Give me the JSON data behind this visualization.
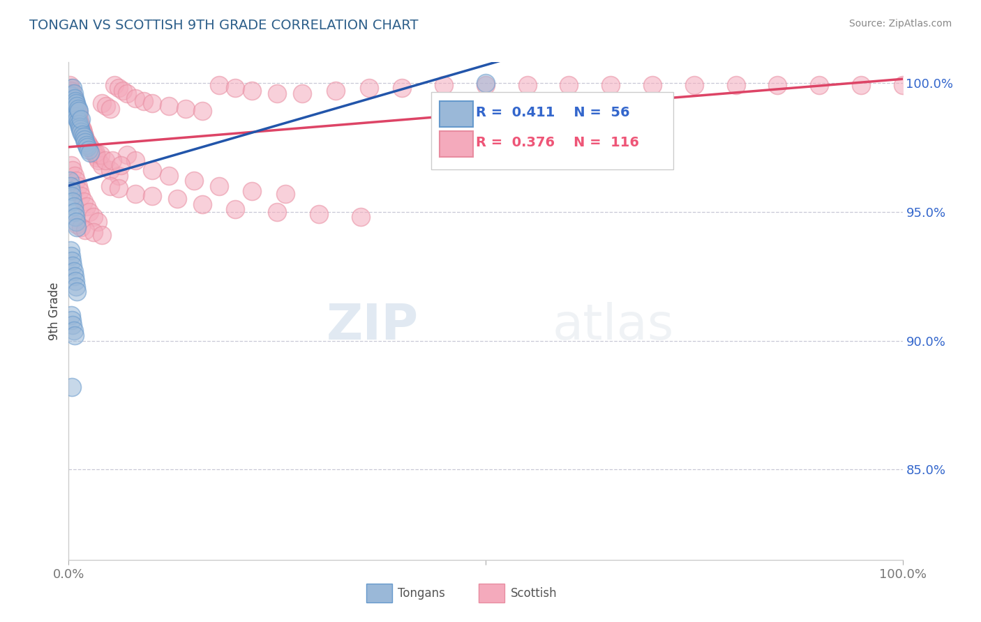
{
  "title": "TONGAN VS SCOTTISH 9TH GRADE CORRELATION CHART",
  "source": "Source: ZipAtlas.com",
  "ylabel": "9th Grade",
  "ylabel_right_ticks": [
    "100.0%",
    "95.0%",
    "90.0%",
    "85.0%"
  ],
  "ylabel_right_vals": [
    1.0,
    0.95,
    0.9,
    0.85
  ],
  "ylim": [
    0.815,
    1.008
  ],
  "xlim": [
    0.0,
    1.0
  ],
  "tongan_R": 0.411,
  "tongan_N": 56,
  "scottish_R": 0.376,
  "scottish_N": 116,
  "tongan_color": "#9AB8D8",
  "scottish_color": "#F4AABC",
  "tongan_edge_color": "#6699CC",
  "scottish_edge_color": "#E88CA0",
  "tongan_line_color": "#2255AA",
  "scottish_line_color": "#DD4466",
  "background_color": "#FFFFFF",
  "grid_color": "#BBBBCC",
  "title_color": "#2D5F8A",
  "source_color": "#888888",
  "legend_text_color": "#3366CC",
  "legend_scottish_color": "#EE5577",
  "watermark_zip": "ZIP",
  "watermark_atlas": "atlas",
  "tongan_x": [
    0.003,
    0.004,
    0.005,
    0.005,
    0.006,
    0.006,
    0.007,
    0.007,
    0.008,
    0.008,
    0.009,
    0.009,
    0.01,
    0.01,
    0.011,
    0.011,
    0.012,
    0.012,
    0.013,
    0.014,
    0.015,
    0.015,
    0.016,
    0.018,
    0.019,
    0.02,
    0.021,
    0.022,
    0.024,
    0.026,
    0.001,
    0.002,
    0.003,
    0.004,
    0.005,
    0.006,
    0.007,
    0.008,
    0.009,
    0.01,
    0.002,
    0.003,
    0.004,
    0.005,
    0.006,
    0.007,
    0.008,
    0.009,
    0.01,
    0.003,
    0.004,
    0.005,
    0.006,
    0.007,
    0.004,
    0.5
  ],
  "tongan_y": [
    0.995,
    0.993,
    0.991,
    0.998,
    0.99,
    0.996,
    0.989,
    0.994,
    0.988,
    0.993,
    0.987,
    0.992,
    0.986,
    0.991,
    0.985,
    0.99,
    0.984,
    0.989,
    0.983,
    0.982,
    0.981,
    0.986,
    0.98,
    0.979,
    0.978,
    0.977,
    0.976,
    0.975,
    0.974,
    0.973,
    0.962,
    0.96,
    0.958,
    0.956,
    0.954,
    0.952,
    0.95,
    0.948,
    0.946,
    0.944,
    0.935,
    0.933,
    0.931,
    0.929,
    0.927,
    0.925,
    0.923,
    0.921,
    0.919,
    0.91,
    0.908,
    0.906,
    0.904,
    0.902,
    0.882,
    1.0
  ],
  "scottish_x": [
    0.001,
    0.001,
    0.002,
    0.002,
    0.003,
    0.003,
    0.004,
    0.004,
    0.005,
    0.005,
    0.006,
    0.006,
    0.007,
    0.007,
    0.008,
    0.008,
    0.009,
    0.009,
    0.01,
    0.01,
    0.011,
    0.011,
    0.012,
    0.012,
    0.013,
    0.014,
    0.015,
    0.016,
    0.017,
    0.018,
    0.019,
    0.02,
    0.022,
    0.024,
    0.026,
    0.028,
    0.03,
    0.032,
    0.034,
    0.036,
    0.04,
    0.045,
    0.05,
    0.055,
    0.06,
    0.065,
    0.07,
    0.08,
    0.09,
    0.1,
    0.12,
    0.14,
    0.16,
    0.18,
    0.2,
    0.22,
    0.25,
    0.28,
    0.32,
    0.36,
    0.4,
    0.45,
    0.5,
    0.55,
    0.6,
    0.65,
    0.7,
    0.75,
    0.8,
    0.85,
    0.9,
    0.95,
    1.0,
    0.003,
    0.005,
    0.007,
    0.009,
    0.011,
    0.013,
    0.015,
    0.018,
    0.021,
    0.025,
    0.03,
    0.035,
    0.04,
    0.05,
    0.06,
    0.07,
    0.08,
    0.1,
    0.12,
    0.15,
    0.18,
    0.22,
    0.26,
    0.01,
    0.015,
    0.02,
    0.03,
    0.04,
    0.05,
    0.06,
    0.08,
    0.1,
    0.13,
    0.16,
    0.2,
    0.25,
    0.3,
    0.35,
    0.032,
    0.038,
    0.044,
    0.052,
    0.062
  ],
  "scottish_y": [
    0.999,
    0.997,
    0.998,
    0.996,
    0.997,
    0.995,
    0.996,
    0.994,
    0.995,
    0.993,
    0.994,
    0.992,
    0.993,
    0.991,
    0.992,
    0.99,
    0.991,
    0.989,
    0.99,
    0.988,
    0.989,
    0.987,
    0.988,
    0.986,
    0.985,
    0.984,
    0.983,
    0.982,
    0.981,
    0.98,
    0.979,
    0.978,
    0.977,
    0.976,
    0.975,
    0.974,
    0.973,
    0.972,
    0.971,
    0.97,
    0.992,
    0.991,
    0.99,
    0.999,
    0.998,
    0.997,
    0.996,
    0.994,
    0.993,
    0.992,
    0.991,
    0.99,
    0.989,
    0.999,
    0.998,
    0.997,
    0.996,
    0.996,
    0.997,
    0.998,
    0.998,
    0.999,
    0.999,
    0.999,
    0.999,
    0.999,
    0.999,
    0.999,
    0.999,
    0.999,
    0.999,
    0.999,
    0.999,
    0.968,
    0.966,
    0.964,
    0.962,
    0.96,
    0.958,
    0.956,
    0.954,
    0.952,
    0.95,
    0.948,
    0.946,
    0.968,
    0.966,
    0.964,
    0.972,
    0.97,
    0.966,
    0.964,
    0.962,
    0.96,
    0.958,
    0.957,
    0.945,
    0.944,
    0.943,
    0.942,
    0.941,
    0.96,
    0.959,
    0.957,
    0.956,
    0.955,
    0.953,
    0.951,
    0.95,
    0.949,
    0.948,
    0.973,
    0.972,
    0.97,
    0.97,
    0.968
  ]
}
